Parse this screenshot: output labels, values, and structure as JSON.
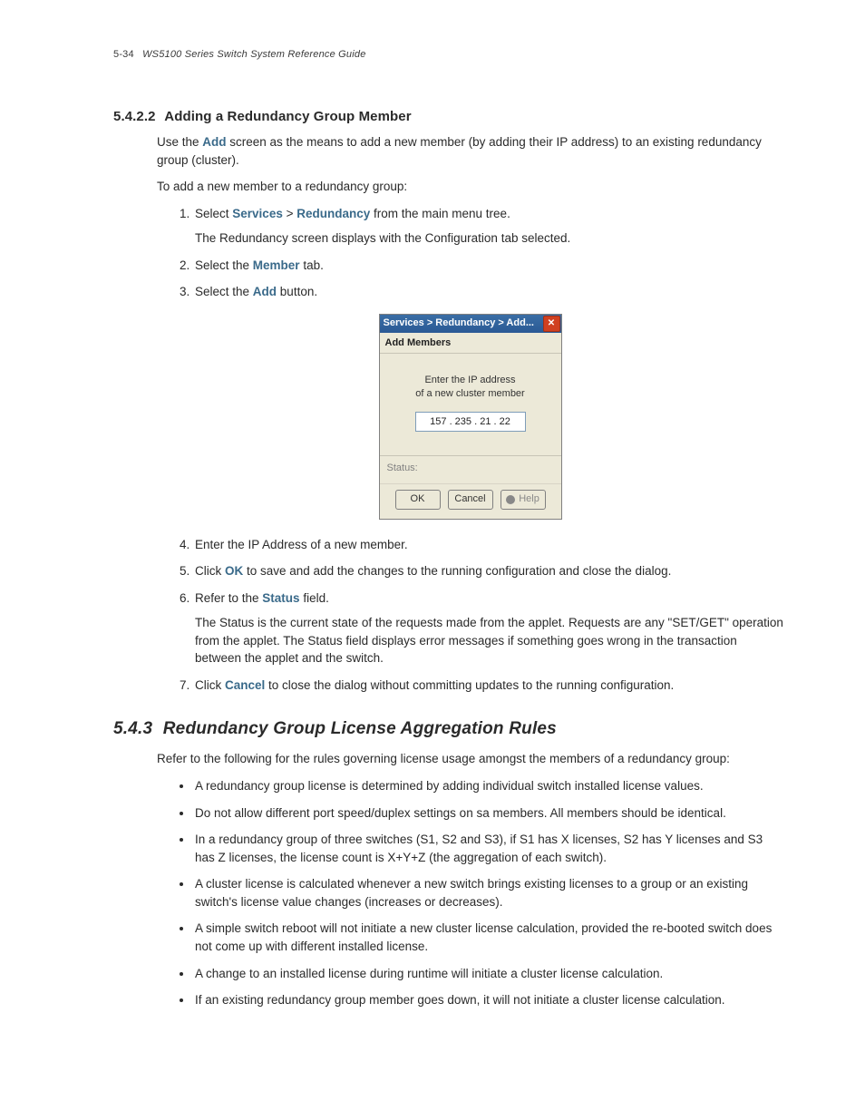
{
  "header": {
    "page_number": "5-34",
    "doc_title": "WS5100 Series Switch System Reference Guide"
  },
  "section5422": {
    "number": "5.4.2.2",
    "title": "Adding a Redundancy Group Member",
    "intro_parts": {
      "p1a": "Use the ",
      "add": "Add",
      "p1b": " screen as the means to add a new member (by adding their IP address) to an existing redundancy group (cluster).",
      "p2": "To add a new member to a redundancy group:"
    },
    "steps": {
      "s1a": "Select ",
      "services": "Services",
      "gt": " > ",
      "redundancy": "Redundancy",
      "s1b": " from the main menu tree.",
      "s1_sub": "The Redundancy screen displays with the Configuration tab selected.",
      "s2a": "Select the ",
      "member": "Member",
      "s2b": " tab.",
      "s3a": "Select the ",
      "add3": "Add",
      "s3b": " button.",
      "s4": "Enter the IP Address of a new member.",
      "s5a": "Click ",
      "ok": "OK",
      "s5b": " to save and add the changes to the running configuration and close the dialog.",
      "s6a": "Refer to the ",
      "status": "Status",
      "s6b": " field.",
      "s6_sub": "The Status is the current state of the requests made from the applet. Requests are any \"SET/GET\" operation from the applet. The Status field displays error messages if something goes wrong in the transaction between the applet and the switch.",
      "s7a": "Click ",
      "cancel": "Cancel",
      "s7b": " to close the dialog without committing updates to the running configuration."
    }
  },
  "dialog": {
    "title": "Services > Redundancy > Add...",
    "close_glyph": "✕",
    "subhead": "Add Members",
    "prompt_line1": "Enter the IP address",
    "prompt_line2": "of a new cluster member",
    "ip_value": "157 . 235 .  21  .  22",
    "status_label": "Status:",
    "btn_ok": "OK",
    "btn_cancel": "Cancel",
    "btn_help": "Help",
    "colors": {
      "titlebar_top": "#3a6ea5",
      "titlebar_bottom": "#2a5a95",
      "dialog_bg": "#ece9d8",
      "close_bg": "#d04020",
      "input_border": "#7f9db9"
    }
  },
  "section543": {
    "number": "5.4.3",
    "title": "Redundancy Group License Aggregation Rules",
    "intro": "Refer to the following for the rules governing license usage amongst the members of a redundancy group:",
    "bullets": [
      "A redundancy group license is determined by adding individual switch installed license values.",
      "Do not allow different port speed/duplex settings on sa members. All members should be identical.",
      "In a redundancy group of three switches (S1, S2 and S3), if S1 has X licenses, S2 has Y licenses and S3 has Z licenses, the license count is X+Y+Z (the aggregation of each switch).",
      "A cluster license is calculated whenever a new switch brings existing licenses to a group or an existing switch's license value changes (increases or decreases).",
      "A simple switch reboot will not initiate a new cluster license calculation, provided the re-booted switch does not come up with different installed license.",
      "A change to an installed license during runtime will initiate a cluster license calculation.",
      "If an existing redundancy group member goes down, it will not initiate a cluster license calculation."
    ]
  }
}
